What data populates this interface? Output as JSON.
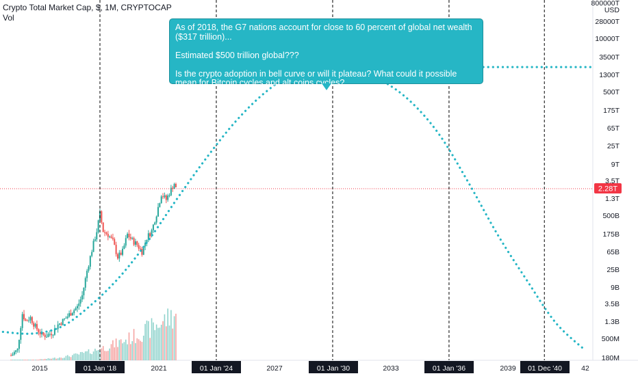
{
  "header": {
    "symbol_line": "Crypto Total Market Cap, $, 1M, CRYPTOCAP",
    "volume_label": "Vol"
  },
  "annotation": {
    "text": "As of 2018, the G7 nations account for close to 60 percent of global net wealth ($317 trillion)...\n\nEstimated $500 trillion global???\n\nIs the crypto adoption in bell curve or will it plateau? What could it possible mean for Bitcoin cycles and alt coins cycles?"
  },
  "chart_data": {
    "type": "line",
    "title": "Crypto Total Market Cap, $, 1M, CRYPTOCAP",
    "y_scale": "log",
    "y_unit": "USD",
    "y_tick_labels": [
      "800000T",
      "USD",
      "28000T",
      "10000T",
      "3500T",
      "1300T",
      "500T",
      "175T",
      "65T",
      "25T",
      "9T",
      "3.5T",
      "1.3T",
      "500B",
      "175B",
      "65B",
      "25B",
      "9B",
      "3.5B",
      "1.3B",
      "500M",
      "180M"
    ],
    "x_tick_labels": [
      "2015",
      "01 Jan '18",
      "2021",
      "01 Jan '24",
      "2027",
      "01 Jan '30",
      "2033",
      "01 Jan '36",
      "2039",
      "01 Dec '40",
      "42"
    ],
    "x_highlighted_labels": [
      "01 Jan '18",
      "01 Jan '24",
      "01 Jan '30",
      "01 Jan '36",
      "01 Dec '40"
    ],
    "current_price_label": "2.28T",
    "current_price": 2280000000000,
    "vertical_markers": [
      "2018-01",
      "2024-01",
      "2030-01",
      "2036-01",
      "2040-12"
    ],
    "projection_curve": {
      "style": "dotted",
      "color": "#26b6c5",
      "points": [
        [
          "2013-01",
          4000000000
        ],
        [
          "2014-07",
          3700000000
        ],
        [
          "2016-01",
          5000000000
        ],
        [
          "2017-06",
          12000000000
        ],
        [
          "2019-01",
          45000000000
        ],
        [
          "2020-07",
          230000000000
        ],
        [
          "2022-01",
          1500000000000
        ],
        [
          "2023-07",
          9000000000000
        ],
        [
          "2025-01",
          45000000000000
        ],
        [
          "2026-07",
          160000000000000
        ],
        [
          "2028-01",
          380000000000000
        ],
        [
          "2029-07",
          520000000000000
        ],
        [
          "2031-01",
          480000000000000
        ],
        [
          "2032-07",
          280000000000000
        ],
        [
          "2034-01",
          110000000000000
        ],
        [
          "2035-07",
          25000000000000
        ],
        [
          "2037-01",
          3000000000000
        ],
        [
          "2038-07",
          300000000000
        ],
        [
          "2040-01",
          40000000000
        ],
        [
          "2041-07",
          6000000000
        ],
        [
          "2043-01",
          1800000000
        ]
      ]
    },
    "plateau_line": {
      "style": "dotted",
      "color": "#26b6c5",
      "from": "2030-01",
      "to": "2043-06",
      "value": 500000000000000
    },
    "price_series": [
      [
        "2013-06",
        1400000000
      ],
      [
        "2013-10",
        1800000000
      ],
      [
        "2014-01",
        9000000000
      ],
      [
        "2014-03",
        6500000000
      ],
      [
        "2014-06",
        7500000000
      ],
      [
        "2014-09",
        5000000000
      ],
      [
        "2015-01",
        3500000000
      ],
      [
        "2015-04",
        3400000000
      ],
      [
        "2015-08",
        4000000000
      ],
      [
        "2015-11",
        5500000000
      ],
      [
        "2016-02",
        6500000000
      ],
      [
        "2016-05",
        8000000000
      ],
      [
        "2016-08",
        10000000000
      ],
      [
        "2016-11",
        12000000000
      ],
      [
        "2017-02",
        20000000000
      ],
      [
        "2017-05",
        60000000000
      ],
      [
        "2017-08",
        150000000000
      ],
      [
        "2017-11",
        350000000000
      ],
      [
        "2018-01",
        750000000000
      ],
      [
        "2018-03",
        350000000000
      ],
      [
        "2018-06",
        300000000000
      ],
      [
        "2018-09",
        220000000000
      ],
      [
        "2018-12",
        110000000000
      ],
      [
        "2019-03",
        140000000000
      ],
      [
        "2019-06",
        300000000000
      ],
      [
        "2019-09",
        230000000000
      ],
      [
        "2019-12",
        190000000000
      ],
      [
        "2020-03",
        140000000000
      ],
      [
        "2020-06",
        260000000000
      ],
      [
        "2020-09",
        350000000000
      ],
      [
        "2020-12",
        750000000000
      ],
      [
        "2021-03",
        1800000000000
      ],
      [
        "2021-06",
        1400000000000
      ],
      [
        "2021-09",
        2200000000000
      ],
      [
        "2021-11",
        2900000000000
      ],
      [
        "2021-12",
        2280000000000
      ]
    ]
  },
  "colors": {
    "projection": "#26b6c5",
    "candle_up": "#26a69a",
    "candle_down": "#ef5350",
    "price_label_bg": "#f23645",
    "marker_label_bg": "#131722"
  }
}
